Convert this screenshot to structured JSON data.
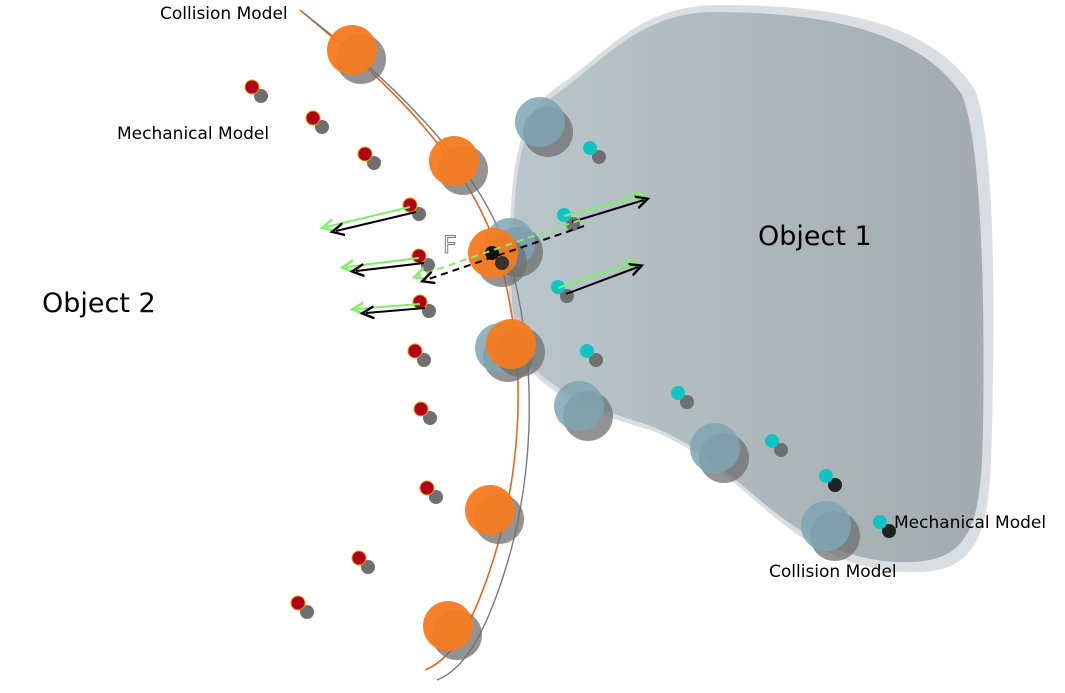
{
  "labels": {
    "collision_model_left": "Collision Model",
    "mechanical_model_left": "Mechanical Model",
    "object1": "Object 1",
    "object2": "Object 2",
    "force": "F",
    "mechanical_model_right": "Mechanical Model",
    "collision_model_right": "Collision Model"
  },
  "colors": {
    "object1_fill": "#a9b6bb",
    "collision_sphere_object2": "#f47b20",
    "collision_sphere_object1": "#7fa4b3",
    "mechanical_node_object2": "#b3001a",
    "mechanical_node_object1": "#11c4c4",
    "shadow": "#6f6f6f",
    "force_arrow_green": "#7fef6a",
    "force_arrow_black": "#000000"
  }
}
